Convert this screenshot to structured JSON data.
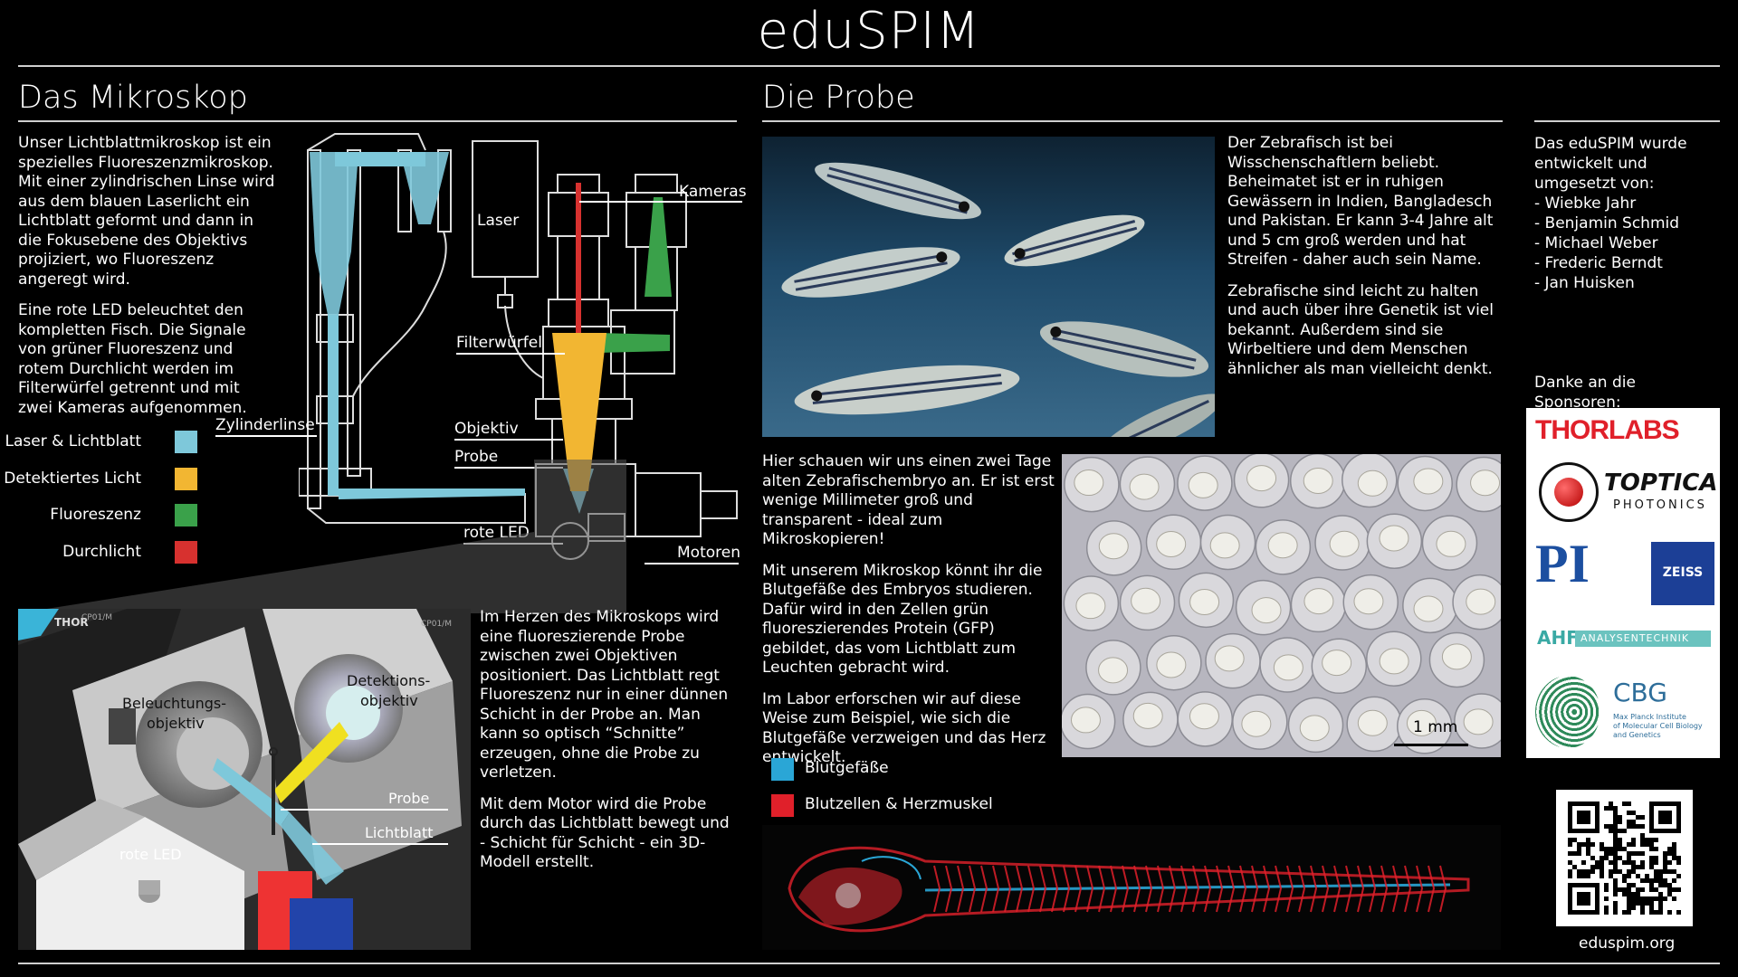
{
  "page_title": "eduSPIM",
  "microscope": {
    "heading": "Das Mikroskop",
    "intro_p1": "Unser Lichtblattmikroskop ist ein spezielles Fluoreszenzmikroskop. Mit einer zylindrischen Linse wird aus dem blauen Laserlicht ein Lichtblatt geformt und dann in die Fokusebene des Objektivs projiziert, wo Fluoreszenz angeregt wird.",
    "intro_p2": "Eine rote LED beleuchtet den kompletten Fisch. Die Signale von grüner Fluoreszenz und rotem Durchlicht werden im Filterwürfel getrennt und mit zwei Kameras aufgenommen.",
    "legend": [
      {
        "label": "Laser & Lichtblatt",
        "color": "#7ec8da"
      },
      {
        "label": "Detektiertes Licht",
        "color": "#f2b632"
      },
      {
        "label": "Fluoreszenz",
        "color": "#3aa14a"
      },
      {
        "label": "Durchlicht",
        "color": "#d7312f"
      }
    ],
    "diagram_labels": {
      "laser": "Laser",
      "kameras": "Kameras",
      "filterwuerfel": "Filterwürfel",
      "zylinderlinse": "Zylinderlinse",
      "objektiv": "Objektiv",
      "probe": "Probe",
      "rote_led": "rote LED",
      "motoren": "Motoren"
    },
    "render_labels": {
      "beleuchtungs_line1": "Beleuchtungs-",
      "beleuchtungs_line2": "objektiv",
      "detektions_line1": "Detektions-",
      "detektions_line2": "objektiv",
      "probe": "Probe",
      "lichtblatt": "Lichtblatt",
      "rote_led": "rote LED",
      "brand": "THOR",
      "part1": "CP01/M",
      "part2": "CP01/M"
    },
    "heart_p1": "Im Herzen des Mikroskops wird eine fluoreszierende Probe zwischen zwei Objektiven positioniert. Das Lichtblatt regt Fluoreszenz nur in einer dünnen Schicht in der Probe an. Man kann so optisch “Schnitte” erzeugen, ohne die Probe zu verletzen.",
    "heart_p2": "Mit dem Motor wird die Probe durch das Lichtblatt bewegt und - Schicht für Schicht - ein 3D-Modell erstellt."
  },
  "probe": {
    "heading": "Die Probe",
    "zebrafish_p1": "Der Zebrafisch ist bei Wisschenschaftlern beliebt. Beheimatet ist er in ruhigen Gewässern in Indien, Bangladesch und Pakistan. Er kann 3-4 Jahre alt und 5 cm groß werden und hat Streifen - daher auch sein Name.",
    "zebrafish_p2": "Zebrafische sind leicht zu halten und auch über ihre Genetik ist viel bekannt. Außerdem sind sie Wirbeltiere und dem Menschen ähnlicher als man vielleicht denkt.",
    "embryo_p1": "Hier schauen wir uns einen zwei Tage alten Zebrafischembryo an. Er ist erst wenige Millimeter groß und transparent - ideal zum Mikroskopieren!",
    "embryo_p2": "Mit unserem Mikroskop könnt ihr die Blutgefäße des Embryos studieren. Dafür wird in den Zellen grün fluoreszierendes Protein (GFP) gebildet, das vom Lichtblatt zum Leuchten gebracht wird.",
    "embryo_p3": "Im Labor erforschen wir auf diese Weise zum Beispiel, wie sich die Blutgefäße verzweigen und das Herz entwickelt.",
    "scale_bar": "1 mm",
    "legend": [
      {
        "label": "Blutgefäße",
        "color": "#2aa6d6"
      },
      {
        "label": "Blutzellen & Herzmuskel",
        "color": "#e0202a"
      }
    ]
  },
  "credits": {
    "intro": "Das eduSPIM wurde entwickelt und umgesetzt von:",
    "people": [
      "- Wiebke Jahr",
      "- Benjamin Schmid",
      "- Michael Weber",
      "- Frederic Berndt",
      "- Jan Huisken"
    ],
    "sponsors_label": "Danke an die Sponsoren:",
    "sponsors": {
      "thorlabs": "THORLABS",
      "toptica": "TOPTICA",
      "toptica_sub": "PHOTONICS",
      "pi": "PI",
      "zeiss": "ZEISS",
      "ahf": "AHF",
      "ahf_sub": "ANALYSENTECHNIK",
      "cbg": "CBG",
      "cbg_sub1": "Max Planck Institute",
      "cbg_sub2": "of Molecular Cell Biology",
      "cbg_sub3": "and Genetics"
    },
    "url": "eduspim.org"
  }
}
